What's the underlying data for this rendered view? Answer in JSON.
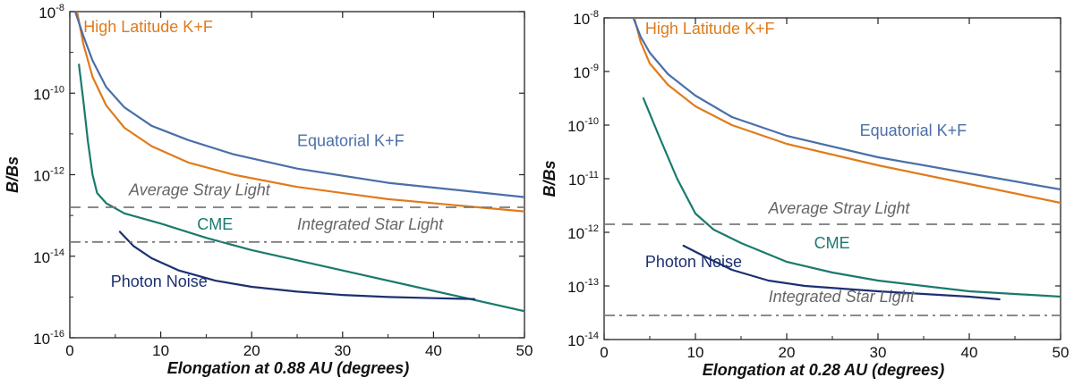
{
  "chart_data": [
    {
      "type": "line",
      "xlabel": "Elongation at 0.88 AU (degrees)",
      "ylabel": "B/Bs",
      "xlim": [
        0,
        50
      ],
      "ylim": [
        -16,
        -8
      ],
      "yscale": "log10",
      "xticks": [
        {
          "v": 0,
          "label": "0"
        },
        {
          "v": 10,
          "label": "10"
        },
        {
          "v": 20,
          "label": "20"
        },
        {
          "v": 30,
          "label": "30"
        },
        {
          "v": 40,
          "label": "40"
        },
        {
          "v": 50,
          "label": "50"
        }
      ],
      "yticks": [
        {
          "v": -8,
          "base": "10",
          "exp": "-8"
        },
        {
          "v": -10,
          "base": "10",
          "exp": "-10"
        },
        {
          "v": -12,
          "base": "10",
          "exp": "-12"
        },
        {
          "v": -14,
          "base": "10",
          "exp": "-14"
        },
        {
          "v": -16,
          "base": "10",
          "exp": "-16"
        }
      ],
      "series": [
        {
          "name": "High Latitude K+F",
          "color": "#e07b1a",
          "dash": "solid",
          "x": [
            0.8,
            1.5,
            2.5,
            4,
            6,
            9,
            13,
            18,
            25,
            35,
            50
          ],
          "y": [
            -8.0,
            -8.8,
            -9.6,
            -10.3,
            -10.85,
            -11.3,
            -11.7,
            -12.0,
            -12.3,
            -12.6,
            -12.9
          ],
          "label": {
            "text": "High Latitude K+F",
            "x": 1.5,
            "y": -8.5,
            "italic": false
          }
        },
        {
          "name": "Equatorial K+F",
          "color": "#4a6fa8",
          "dash": "solid",
          "x": [
            0.6,
            1.5,
            2.5,
            4,
            6,
            9,
            13,
            18,
            25,
            35,
            50
          ],
          "y": [
            -8.0,
            -8.6,
            -9.2,
            -9.85,
            -10.35,
            -10.8,
            -11.15,
            -11.5,
            -11.85,
            -12.2,
            -12.55
          ],
          "label": {
            "text": "Equatorial K+F",
            "x": 25,
            "y": -11.3,
            "italic": false
          }
        },
        {
          "name": "CME",
          "color": "#1a7a6e",
          "dash": "solid",
          "x": [
            1.0,
            1.5,
            2,
            2.5,
            3,
            4,
            6,
            10,
            15,
            20,
            30,
            40,
            50
          ],
          "y": [
            -9.3,
            -10.2,
            -11.2,
            -12.0,
            -12.45,
            -12.7,
            -12.95,
            -13.2,
            -13.55,
            -13.85,
            -14.35,
            -14.85,
            -15.35
          ],
          "label": {
            "text": "CME",
            "x": 14,
            "y": -13.35,
            "italic": false
          }
        },
        {
          "name": "Photon Noise",
          "color": "#1c2f70",
          "dash": "solid",
          "x": [
            5.5,
            7,
            9,
            12,
            16,
            20,
            25,
            30,
            35,
            40,
            44.5
          ],
          "y": [
            -13.4,
            -13.75,
            -14.05,
            -14.35,
            -14.6,
            -14.75,
            -14.87,
            -14.95,
            -15.0,
            -15.03,
            -15.05
          ],
          "label": {
            "text": "Photon Noise",
            "x": 4.5,
            "y": -14.75,
            "italic": false
          }
        },
        {
          "name": "Average Stray Light",
          "color": "#7a7a7a",
          "dash": "12,8",
          "x": [
            0,
            50
          ],
          "y": [
            -12.8,
            -12.8
          ],
          "label": {
            "text": "Average Stray Light",
            "x": 6.5,
            "y": -12.5,
            "italic": true
          }
        },
        {
          "name": "Integrated Star Light",
          "color": "#7a7a7a",
          "dash": "12,5,3,5",
          "x": [
            0,
            50
          ],
          "y": [
            -13.65,
            -13.65
          ],
          "label": {
            "text": "Integrated Star Light",
            "x": 25,
            "y": -13.35,
            "italic": true
          }
        }
      ]
    },
    {
      "type": "line",
      "xlabel": "Elongation at 0.28 AU (degrees)",
      "ylabel": "B/Bs",
      "xlim": [
        0,
        50
      ],
      "ylim": [
        -14,
        -8
      ],
      "yscale": "log10",
      "xticks": [
        {
          "v": 0,
          "label": "0"
        },
        {
          "v": 10,
          "label": "10"
        },
        {
          "v": 20,
          "label": "20"
        },
        {
          "v": 30,
          "label": "30"
        },
        {
          "v": 40,
          "label": "40"
        },
        {
          "v": 50,
          "label": "50"
        }
      ],
      "yticks": [
        {
          "v": -8,
          "base": "10",
          "exp": "-8"
        },
        {
          "v": -9,
          "base": "10",
          "exp": "-9"
        },
        {
          "v": -10,
          "base": "10",
          "exp": "-10"
        },
        {
          "v": -11,
          "base": "10",
          "exp": "-11"
        },
        {
          "v": -12,
          "base": "10",
          "exp": "-12"
        },
        {
          "v": -13,
          "base": "10",
          "exp": "-13"
        },
        {
          "v": -14,
          "base": "10",
          "exp": "-14"
        }
      ],
      "series": [
        {
          "name": "High Latitude K+F",
          "color": "#e07b1a",
          "dash": "solid",
          "x": [
            3.3,
            4,
            5,
            7,
            10,
            14,
            20,
            30,
            40,
            50
          ],
          "y": [
            -8.0,
            -8.45,
            -8.85,
            -9.25,
            -9.65,
            -10.0,
            -10.35,
            -10.75,
            -11.1,
            -11.45
          ],
          "label": {
            "text": "High Latitude K+F",
            "x": 4.5,
            "y": -8.3,
            "italic": false
          }
        },
        {
          "name": "Equatorial K+F",
          "color": "#4a6fa8",
          "dash": "solid",
          "x": [
            3.2,
            4,
            5,
            7,
            10,
            14,
            20,
            30,
            40,
            50
          ],
          "y": [
            -8.0,
            -8.35,
            -8.65,
            -9.05,
            -9.45,
            -9.85,
            -10.2,
            -10.6,
            -10.9,
            -11.2
          ],
          "label": {
            "text": "Equatorial K+F",
            "x": 28,
            "y": -10.2,
            "italic": false
          }
        },
        {
          "name": "CME",
          "color": "#1a7a6e",
          "dash": "solid",
          "x": [
            4.3,
            6,
            8,
            10,
            12,
            15,
            20,
            25,
            30,
            40,
            50
          ],
          "y": [
            -9.5,
            -10.2,
            -11.0,
            -11.65,
            -11.95,
            -12.2,
            -12.55,
            -12.75,
            -12.9,
            -13.1,
            -13.2
          ],
          "label": {
            "text": "CME",
            "x": 23,
            "y": -12.3,
            "italic": false
          }
        },
        {
          "name": "Photon Noise",
          "color": "#1c2f70",
          "dash": "solid",
          "x": [
            8.7,
            11,
            14,
            18,
            22,
            26,
            30,
            35,
            40,
            43.3
          ],
          "y": [
            -12.25,
            -12.45,
            -12.7,
            -12.9,
            -13.0,
            -13.05,
            -13.1,
            -13.15,
            -13.2,
            -13.25
          ],
          "label": {
            "text": "Photon Noise",
            "x": 4.5,
            "y": -12.65,
            "italic": false
          }
        },
        {
          "name": "Average Stray Light",
          "color": "#7a7a7a",
          "dash": "12,8",
          "x": [
            0,
            50
          ],
          "y": [
            -11.85,
            -11.85
          ],
          "label": {
            "text": "Average Stray Light",
            "x": 18,
            "y": -11.65,
            "italic": true
          }
        },
        {
          "name": "Integrated Star Light",
          "color": "#7a7a7a",
          "dash": "12,5,3,5",
          "x": [
            0,
            50
          ],
          "y": [
            -13.55,
            -13.55
          ],
          "label": {
            "text": "Integrated Star Light",
            "x": 18,
            "y": -13.3,
            "italic": true
          }
        }
      ]
    }
  ]
}
